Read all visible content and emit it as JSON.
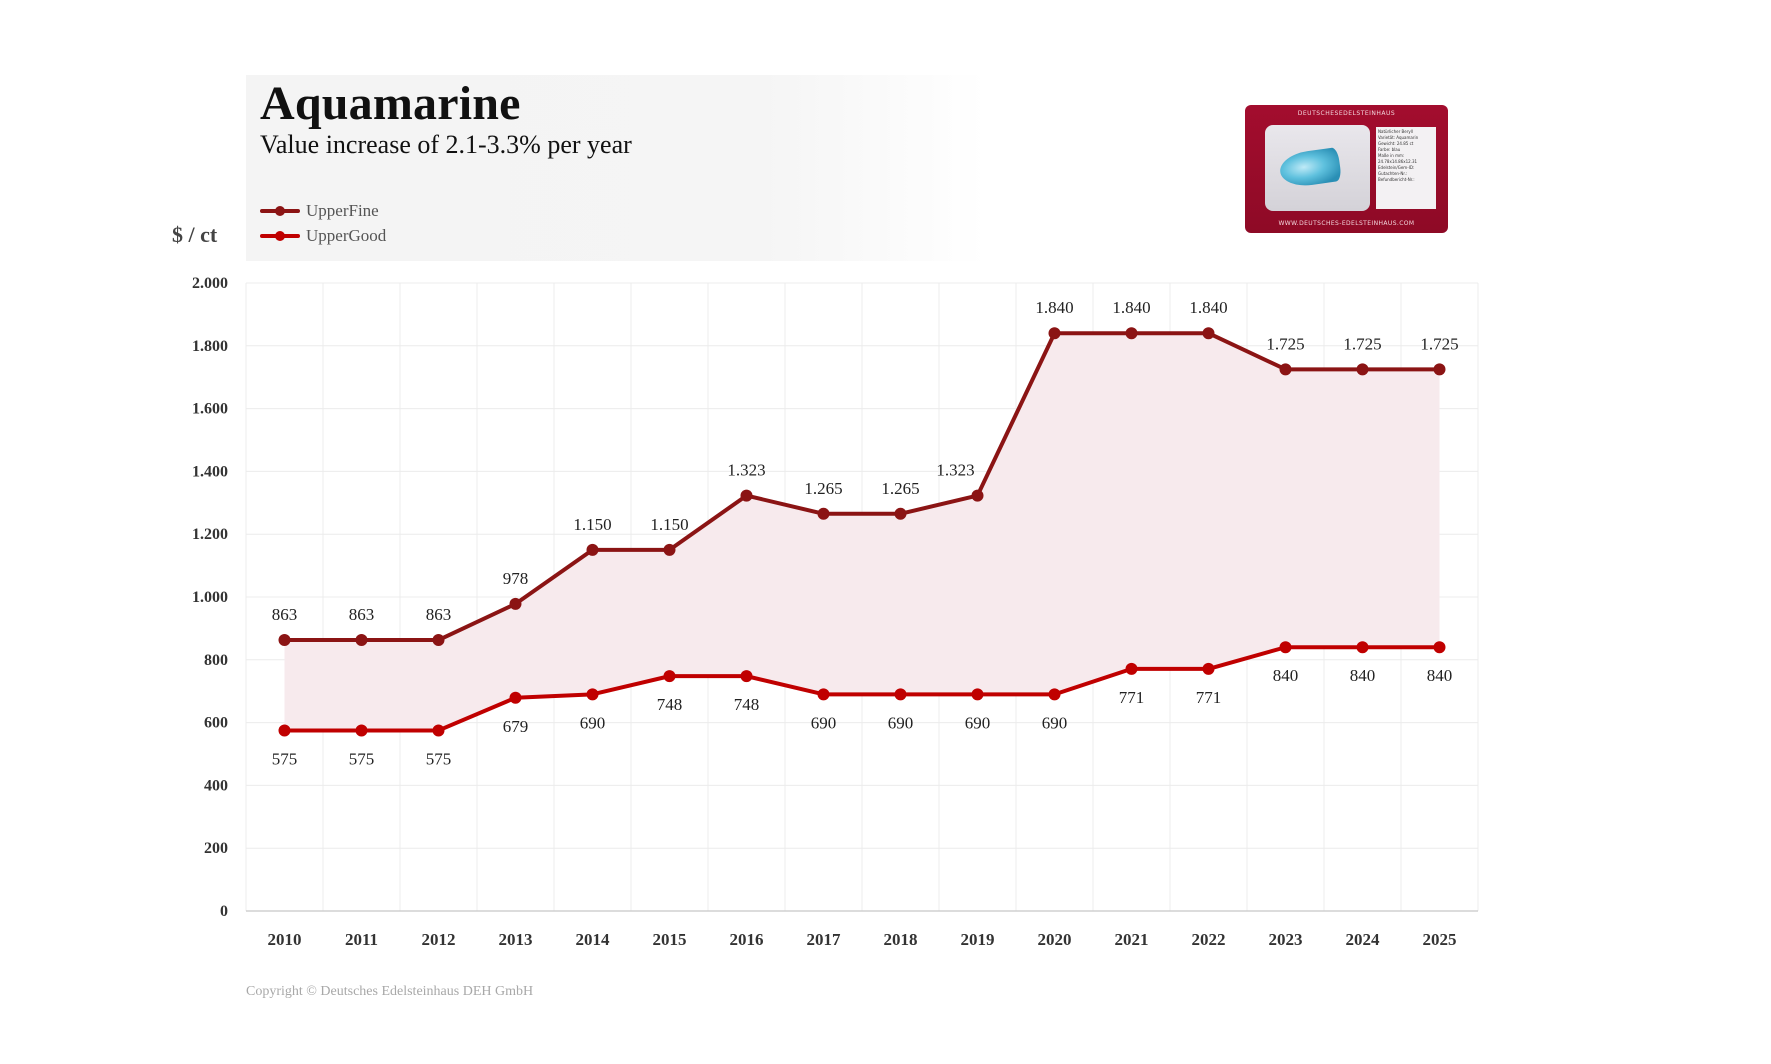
{
  "header": {
    "title": "Aquamarine",
    "subtitle": "Value increase of 2.1-3.3% per year"
  },
  "product_card": {
    "brand": "DEUTSCHESEDELSTEINHAUS",
    "url": "WWW.DEUTSCHES-EDELSTEINHAUS.COM",
    "label_lines": [
      "Natürlicher Beryll",
      "Varietät: Aquamarin",
      "Gewicht: 24.85 ct",
      "Farbe: blau",
      "Maße in mm:",
      "24.78x14.86x12.31",
      "Edelstein/Gem-ID:",
      "Gutachten-Nr.:",
      "Befundbericht-Nr.:"
    ]
  },
  "copyright": "Copyright © Deutsches Edelsteinhaus DEH GmbH",
  "colors": {
    "upper_fine": "#8b1414",
    "upper_good": "#c00000",
    "band_fill": "#f7eaed",
    "grid": "#ececec"
  },
  "chart_data": {
    "type": "line",
    "title": "Aquamarine",
    "subtitle": "Value increase of 2.1-3.3% per year",
    "xlabel": "",
    "ylabel": "$ / ct",
    "ylim": [
      0,
      2000
    ],
    "yticks": [
      0,
      200,
      400,
      600,
      800,
      1000,
      1200,
      1400,
      1600,
      1800,
      2000
    ],
    "ytick_labels": [
      "0",
      "200",
      "400",
      "600",
      "800",
      "1.000",
      "1.200",
      "1.400",
      "1.600",
      "1.800",
      "2.000"
    ],
    "grid": true,
    "legend_position": "top-left",
    "categories": [
      "2010",
      "2011",
      "2012",
      "2013",
      "2014",
      "2015",
      "2016",
      "2017",
      "2018",
      "2019",
      "2020",
      "2021",
      "2022",
      "2023",
      "2024",
      "2025"
    ],
    "series": [
      {
        "name": "UpperFine",
        "values": [
          863,
          863,
          863,
          978,
          1150,
          1150,
          1323,
          1265,
          1265,
          1323,
          1840,
          1840,
          1840,
          1725,
          1725,
          1725
        ],
        "labels": [
          "863",
          "863",
          "863",
          "978",
          "1.150",
          "1.150",
          "1.323",
          "1.265",
          "1.265",
          "1.323",
          "1.840",
          "1.840",
          "1.840",
          "1.725",
          "1.725",
          "1.725"
        ],
        "label_position": "above"
      },
      {
        "name": "UpperGood",
        "values": [
          575,
          575,
          575,
          679,
          690,
          748,
          748,
          690,
          690,
          690,
          690,
          771,
          771,
          840,
          840,
          840
        ],
        "labels": [
          "575",
          "575",
          "575",
          "679",
          "690",
          "748",
          "748",
          "690",
          "690",
          "690",
          "690",
          "771",
          "771",
          "840",
          "840",
          "840"
        ],
        "label_position": "below"
      }
    ]
  }
}
